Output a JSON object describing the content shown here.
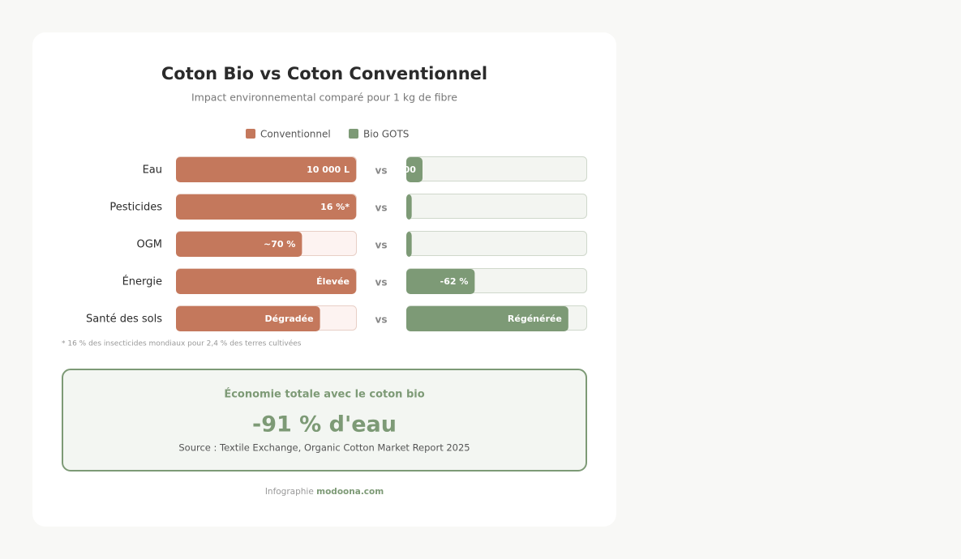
{
  "chart_data": {
    "type": "paired-bar",
    "title": "Coton Bio vs Coton Conventionnel",
    "subtitle": "Impact environnemental comparé pour 1 kg de fibre",
    "categories": [
      "Eau",
      "Pesticides",
      "OGM",
      "Énergie",
      "Santé des sols"
    ],
    "separator": "vs",
    "xlim": [
      0,
      100
    ],
    "series": [
      {
        "name": "Conventionnel",
        "color": "#c4785c",
        "values": [
          100,
          100,
          70,
          100,
          80
        ],
        "labels": [
          "10 000 L",
          "16 %*",
          "~70 %",
          "Élevée",
          "Dégradée"
        ]
      },
      {
        "name": "Bio GOTS",
        "color": "#7d9a76",
        "values": [
          9,
          3,
          3,
          38,
          90
        ],
        "labels": [
          "00",
          null,
          null,
          "-62 %",
          "Régénérée"
        ]
      }
    ],
    "footnote": "* 16 % des insecticides mondiaux pour 2,4 % des terres cultivées",
    "highlight": {
      "title": "Économie totale avec le coton bio",
      "value": "-91 % d'eau",
      "source": "Source : Textile Exchange, Organic Cotton Market Report 2025"
    },
    "credit": {
      "text": "Infographie",
      "brand": "modoona.com"
    }
  }
}
